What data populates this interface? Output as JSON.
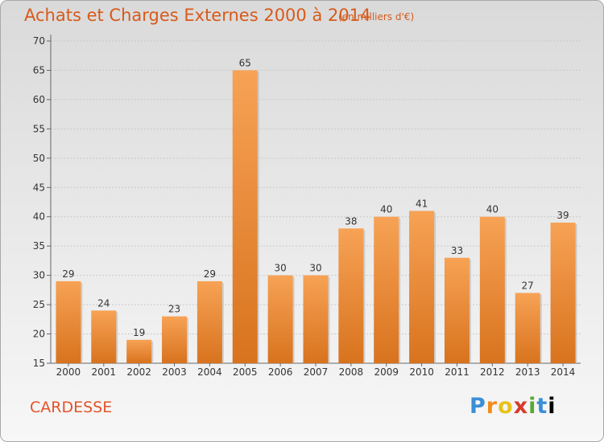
{
  "header": {
    "title": "Achats et Charges Externes 2000 à 2014",
    "unit": "(en milliers d'€)"
  },
  "footer": {
    "commune": "CARDESSE",
    "logo": "Proxiti"
  },
  "colors": {
    "title": "#d85a1a",
    "bar_light": "#f7a255",
    "bar_dark": "#d8731e",
    "commune": "#e4532a"
  },
  "chart_data": {
    "type": "bar",
    "categories": [
      "2000",
      "2001",
      "2002",
      "2003",
      "2004",
      "2005",
      "2006",
      "2007",
      "2008",
      "2009",
      "2010",
      "2011",
      "2012",
      "2013",
      "2014"
    ],
    "values": [
      29,
      24,
      19,
      23,
      29,
      65,
      30,
      30,
      38,
      40,
      41,
      33,
      40,
      27,
      39
    ],
    "data_labels": [
      "29",
      "24",
      "19",
      "23",
      "29",
      "65",
      "30",
      "30",
      "38",
      "40",
      "41",
      "33",
      "40",
      "27",
      "39"
    ],
    "title": "Achats et Charges Externes 2000 à 2014",
    "xlabel": "",
    "ylabel": "",
    "ylim": [
      15,
      70
    ],
    "yticks": [
      15,
      20,
      25,
      30,
      35,
      40,
      45,
      50,
      55,
      60,
      65,
      70
    ],
    "ytick_labels": [
      "15",
      "20",
      "25",
      "30",
      "35",
      "40",
      "45",
      "50",
      "55",
      "60",
      "65",
      "70"
    ],
    "grid": true,
    "legend": "none"
  }
}
